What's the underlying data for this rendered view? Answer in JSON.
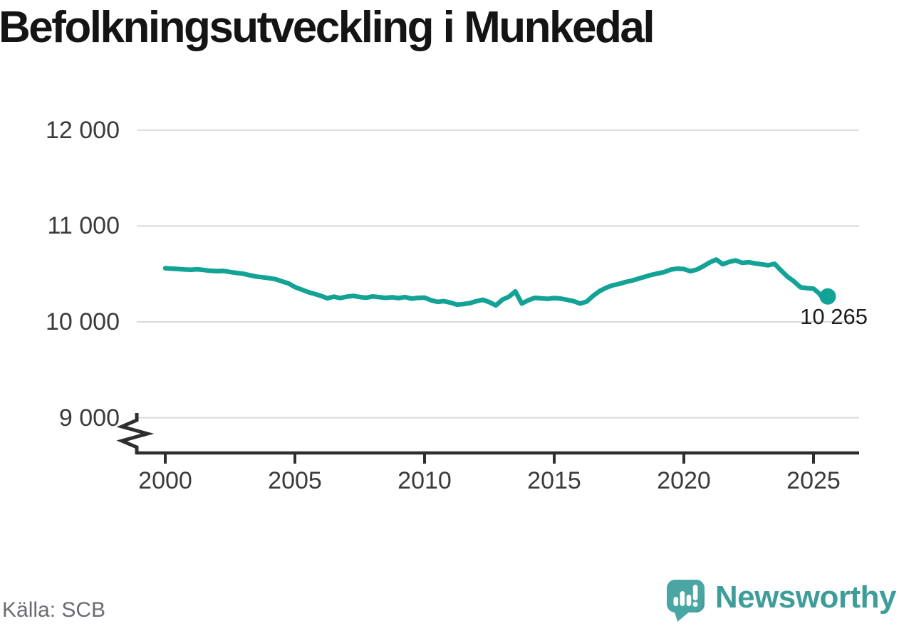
{
  "title": "Befolkningsutveckling i Munkedal",
  "source": {
    "label": "Källa: SCB"
  },
  "brand": {
    "name": "Newsworthy",
    "logo_icon": "bar-chart-speech-bubble-icon",
    "wordmark_color": "#3e9d9a",
    "mark_color": "#4aa6a3"
  },
  "chart_data": {
    "type": "line",
    "title": "Befolkningsutveckling i Munkedal",
    "xlabel": "",
    "ylabel": "",
    "grid": "horizontal",
    "legend": "none",
    "y_axis_break": true,
    "xlim": [
      1998.85,
      2026.8
    ],
    "ylim": [
      9000,
      12200
    ],
    "x_ticks": [
      {
        "value": 2000,
        "label": "2000"
      },
      {
        "value": 2005,
        "label": "2005"
      },
      {
        "value": 2010,
        "label": "2010"
      },
      {
        "value": 2015,
        "label": "2015"
      },
      {
        "value": 2020,
        "label": "2020"
      },
      {
        "value": 2025,
        "label": "2025"
      }
    ],
    "y_ticks": [
      {
        "value": 12000,
        "label": "12 000"
      },
      {
        "value": 11000,
        "label": "11 000"
      },
      {
        "value": 10000,
        "label": "10 000"
      },
      {
        "value": 9000,
        "label": "9 000"
      }
    ],
    "line_color": "#12a296",
    "grid_color": "#d9d9d9",
    "axis_color": "#2e2e2e",
    "series": [
      {
        "name": "Befolkning",
        "points": [
          [
            2000.0,
            10560
          ],
          [
            2000.25,
            10556
          ],
          [
            2000.5,
            10551
          ],
          [
            2000.75,
            10547
          ],
          [
            2001.0,
            10544
          ],
          [
            2001.25,
            10549
          ],
          [
            2001.5,
            10541
          ],
          [
            2001.75,
            10533
          ],
          [
            2002.0,
            10529
          ],
          [
            2002.25,
            10532
          ],
          [
            2002.5,
            10521
          ],
          [
            2002.75,
            10511
          ],
          [
            2003.0,
            10503
          ],
          [
            2003.25,
            10487
          ],
          [
            2003.5,
            10473
          ],
          [
            2003.75,
            10466
          ],
          [
            2004.0,
            10457
          ],
          [
            2004.25,
            10446
          ],
          [
            2004.5,
            10423
          ],
          [
            2004.75,
            10402
          ],
          [
            2005.0,
            10363
          ],
          [
            2005.25,
            10338
          ],
          [
            2005.5,
            10312
          ],
          [
            2005.75,
            10293
          ],
          [
            2006.0,
            10272
          ],
          [
            2006.25,
            10247
          ],
          [
            2006.5,
            10263
          ],
          [
            2006.75,
            10249
          ],
          [
            2007.0,
            10263
          ],
          [
            2007.25,
            10271
          ],
          [
            2007.5,
            10259
          ],
          [
            2007.75,
            10252
          ],
          [
            2008.0,
            10266
          ],
          [
            2008.25,
            10258
          ],
          [
            2008.5,
            10251
          ],
          [
            2008.75,
            10257
          ],
          [
            2009.0,
            10248
          ],
          [
            2009.25,
            10259
          ],
          [
            2009.5,
            10243
          ],
          [
            2009.75,
            10251
          ],
          [
            2010.0,
            10253
          ],
          [
            2010.25,
            10226
          ],
          [
            2010.5,
            10209
          ],
          [
            2010.75,
            10216
          ],
          [
            2011.0,
            10201
          ],
          [
            2011.25,
            10180
          ],
          [
            2011.5,
            10186
          ],
          [
            2011.75,
            10196
          ],
          [
            2012.0,
            10216
          ],
          [
            2012.25,
            10231
          ],
          [
            2012.5,
            10206
          ],
          [
            2012.75,
            10172
          ],
          [
            2013.0,
            10232
          ],
          [
            2013.25,
            10262
          ],
          [
            2013.5,
            10318
          ],
          [
            2013.75,
            10192
          ],
          [
            2014.0,
            10226
          ],
          [
            2014.25,
            10251
          ],
          [
            2014.5,
            10246
          ],
          [
            2014.75,
            10241
          ],
          [
            2015.0,
            10249
          ],
          [
            2015.25,
            10243
          ],
          [
            2015.5,
            10231
          ],
          [
            2015.75,
            10216
          ],
          [
            2016.0,
            10192
          ],
          [
            2016.25,
            10212
          ],
          [
            2016.5,
            10272
          ],
          [
            2016.75,
            10322
          ],
          [
            2017.0,
            10356
          ],
          [
            2017.25,
            10381
          ],
          [
            2017.5,
            10396
          ],
          [
            2017.75,
            10416
          ],
          [
            2018.0,
            10431
          ],
          [
            2018.25,
            10451
          ],
          [
            2018.5,
            10471
          ],
          [
            2018.75,
            10491
          ],
          [
            2019.0,
            10506
          ],
          [
            2019.25,
            10521
          ],
          [
            2019.5,
            10546
          ],
          [
            2019.75,
            10556
          ],
          [
            2020.0,
            10551
          ],
          [
            2020.25,
            10529
          ],
          [
            2020.5,
            10546
          ],
          [
            2020.75,
            10581
          ],
          [
            2021.0,
            10621
          ],
          [
            2021.25,
            10651
          ],
          [
            2021.5,
            10601
          ],
          [
            2021.75,
            10626
          ],
          [
            2022.0,
            10641
          ],
          [
            2022.25,
            10616
          ],
          [
            2022.5,
            10623
          ],
          [
            2022.75,
            10609
          ],
          [
            2023.0,
            10601
          ],
          [
            2023.25,
            10591
          ],
          [
            2023.5,
            10606
          ],
          [
            2023.75,
            10536
          ],
          [
            2024.0,
            10471
          ],
          [
            2024.25,
            10421
          ],
          [
            2024.5,
            10361
          ],
          [
            2024.75,
            10352
          ],
          [
            2025.0,
            10346
          ],
          [
            2025.2,
            10301
          ],
          [
            2025.4,
            10234
          ],
          [
            2025.55,
            10265
          ]
        ]
      }
    ],
    "end_point": {
      "x": 2025.55,
      "y": 10265,
      "label": "10 265"
    }
  }
}
